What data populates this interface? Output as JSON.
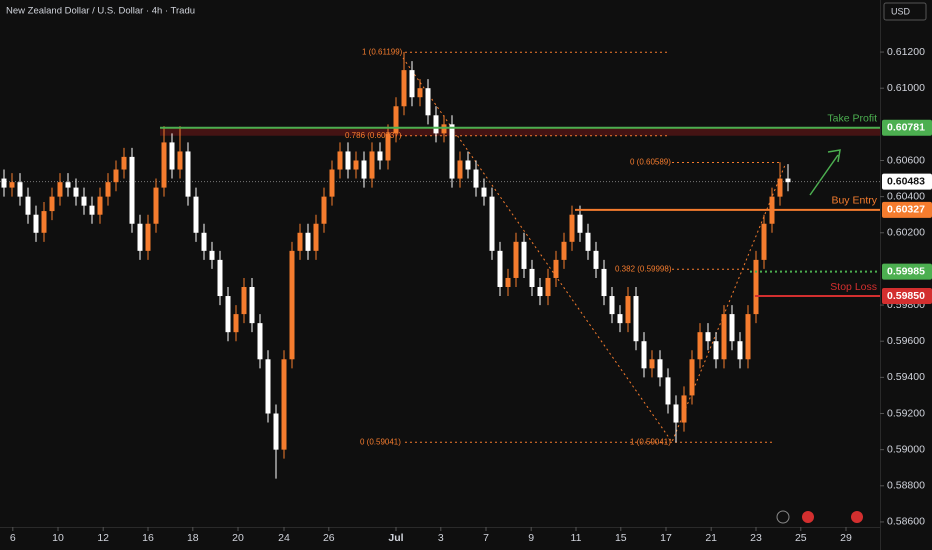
{
  "chart_data": {
    "type": "candlestick",
    "title": "New Zealand Dollar / U.S. Dollar · 4h · Tradu",
    "currency": "USD",
    "up_color": "#f57c2e",
    "down_color": "#ffffff",
    "open": [
      0.605,
      0.6045,
      0.6048,
      0.604,
      0.603,
      0.602,
      0.6032,
      0.604,
      0.6048,
      0.6045,
      0.604,
      0.6035,
      0.603,
      0.604,
      0.6048,
      0.6055,
      0.6062,
      0.6025,
      0.601,
      0.6025,
      0.6045,
      0.607,
      0.6055,
      0.6065,
      0.604,
      0.602,
      0.601,
      0.6005,
      0.5985,
      0.5965,
      0.5975,
      0.599,
      0.597,
      0.595,
      0.592,
      0.59,
      0.595,
      0.601,
      0.602,
      0.601,
      0.6025,
      0.604,
      0.6055,
      0.6065,
      0.6055,
      0.606,
      0.605,
      0.6065,
      0.606,
      0.6075,
      0.609,
      0.611,
      0.6095,
      0.61,
      0.6085,
      0.6075,
      0.608,
      0.605,
      0.606,
      0.6055,
      0.6045,
      0.604,
      0.601,
      0.599,
      0.5995,
      0.6015,
      0.6,
      0.599,
      0.5985,
      0.5995,
      0.6005,
      0.6015,
      0.603,
      0.602,
      0.601,
      0.6,
      0.5985,
      0.5975,
      0.597,
      0.5985,
      0.596,
      0.5945,
      0.595,
      0.594,
      0.5925,
      0.5915,
      0.593,
      0.595,
      0.5965,
      0.596,
      0.595,
      0.5975,
      0.596,
      0.595,
      0.5975,
      0.6005,
      0.6025,
      0.604,
      0.605
    ],
    "high": [
      0.6055,
      0.6053,
      0.6053,
      0.6045,
      0.6035,
      0.6037,
      0.6045,
      0.6053,
      0.6053,
      0.605,
      0.6045,
      0.604,
      0.6045,
      0.6053,
      0.606,
      0.6067,
      0.6067,
      0.603,
      0.603,
      0.605,
      0.6079,
      0.6075,
      0.6079,
      0.607,
      0.6045,
      0.6025,
      0.6015,
      0.601,
      0.599,
      0.598,
      0.5995,
      0.5995,
      0.5975,
      0.5955,
      0.5925,
      0.5955,
      0.6015,
      0.6025,
      0.6025,
      0.603,
      0.6045,
      0.606,
      0.607,
      0.607,
      0.6065,
      0.6065,
      0.607,
      0.607,
      0.608,
      0.6095,
      0.612,
      0.6115,
      0.6105,
      0.6105,
      0.609,
      0.6085,
      0.6085,
      0.6065,
      0.6065,
      0.606,
      0.605,
      0.6045,
      0.6015,
      0.6,
      0.602,
      0.602,
      0.6005,
      0.5995,
      0.6,
      0.601,
      0.602,
      0.6035,
      0.6035,
      0.6025,
      0.6015,
      0.6005,
      0.599,
      0.598,
      0.599,
      0.599,
      0.5965,
      0.5955,
      0.5955,
      0.5945,
      0.593,
      0.5935,
      0.5955,
      0.597,
      0.597,
      0.5965,
      0.598,
      0.598,
      0.5965,
      0.598,
      0.601,
      0.603,
      0.6045,
      0.6059,
      0.6058
    ],
    "low": [
      0.604,
      0.604,
      0.6035,
      0.6025,
      0.6015,
      0.6015,
      0.6027,
      0.6035,
      0.604,
      0.6035,
      0.603,
      0.6025,
      0.6025,
      0.6035,
      0.6043,
      0.605,
      0.602,
      0.6005,
      0.6005,
      0.602,
      0.604,
      0.605,
      0.605,
      0.6035,
      0.6015,
      0.6005,
      0.6,
      0.598,
      0.596,
      0.596,
      0.597,
      0.5965,
      0.5945,
      0.5915,
      0.5884,
      0.5895,
      0.5945,
      0.6005,
      0.6005,
      0.6005,
      0.602,
      0.6035,
      0.605,
      0.605,
      0.605,
      0.6045,
      0.6045,
      0.6055,
      0.6055,
      0.607,
      0.6085,
      0.609,
      0.609,
      0.608,
      0.607,
      0.607,
      0.6045,
      0.6045,
      0.605,
      0.604,
      0.6035,
      0.6005,
      0.5985,
      0.5985,
      0.599,
      0.5995,
      0.5985,
      0.598,
      0.598,
      0.599,
      0.6,
      0.601,
      0.6015,
      0.6005,
      0.5995,
      0.598,
      0.597,
      0.5965,
      0.5965,
      0.5955,
      0.594,
      0.594,
      0.5935,
      0.592,
      0.5904,
      0.591,
      0.5925,
      0.5945,
      0.5955,
      0.5945,
      0.5945,
      0.5955,
      0.5945,
      0.5945,
      0.597,
      0.6,
      0.602,
      0.6035,
      0.6043
    ],
    "close": [
      0.6045,
      0.6048,
      0.604,
      0.603,
      0.602,
      0.6032,
      0.604,
      0.6048,
      0.6045,
      0.604,
      0.6035,
      0.603,
      0.604,
      0.6048,
      0.6055,
      0.6062,
      0.6025,
      0.601,
      0.6025,
      0.6045,
      0.607,
      0.6055,
      0.6065,
      0.604,
      0.602,
      0.601,
      0.6005,
      0.5985,
      0.5965,
      0.5975,
      0.599,
      0.597,
      0.595,
      0.592,
      0.59,
      0.595,
      0.601,
      0.602,
      0.601,
      0.6025,
      0.604,
      0.6055,
      0.6065,
      0.6055,
      0.606,
      0.605,
      0.6065,
      0.606,
      0.6075,
      0.609,
      0.611,
      0.6095,
      0.61,
      0.6085,
      0.6075,
      0.608,
      0.605,
      0.606,
      0.6055,
      0.6045,
      0.604,
      0.601,
      0.599,
      0.5995,
      0.6015,
      0.6,
      0.599,
      0.5985,
      0.5995,
      0.6005,
      0.6015,
      0.603,
      0.602,
      0.601,
      0.6,
      0.5985,
      0.5975,
      0.597,
      0.5985,
      0.596,
      0.5945,
      0.595,
      0.594,
      0.5925,
      0.5915,
      0.593,
      0.595,
      0.5965,
      0.596,
      0.595,
      0.5975,
      0.596,
      0.595,
      0.5975,
      0.6005,
      0.6025,
      0.604,
      0.605,
      0.6048
    ],
    "xlim": [
      -0.5,
      109.5
    ],
    "xticks": [
      {
        "value": 1.1,
        "label": "6"
      },
      {
        "value": 6.75,
        "label": "10"
      },
      {
        "value": 12.4,
        "label": "12"
      },
      {
        "value": 18,
        "label": "16"
      },
      {
        "value": 23.6,
        "label": "18"
      },
      {
        "value": 29.25,
        "label": "20"
      },
      {
        "value": 35,
        "label": "24"
      },
      {
        "value": 40.6,
        "label": "26"
      },
      {
        "value": 49,
        "label": "Jul"
      },
      {
        "value": 54.6,
        "label": "3"
      },
      {
        "value": 60.25,
        "label": "7"
      },
      {
        "value": 65.9,
        "label": "9"
      },
      {
        "value": 71.5,
        "label": "11"
      },
      {
        "value": 77.1,
        "label": "15"
      },
      {
        "value": 82.75,
        "label": "17"
      },
      {
        "value": 88.4,
        "label": "21"
      },
      {
        "value": 94,
        "label": "23"
      },
      {
        "value": 99.6,
        "label": "25"
      },
      {
        "value": 105.25,
        "label": "29"
      }
    ],
    "ylim": [
      0.58572,
      0.61488
    ],
    "yticks": [
      {
        "value": 0.612,
        "label": "0.61200"
      },
      {
        "value": 0.61,
        "label": "0.61000"
      },
      {
        "value": 0.606,
        "label": "0.60600"
      },
      {
        "value": 0.604,
        "label": "0.60400"
      },
      {
        "value": 0.602,
        "label": "0.60200"
      },
      {
        "value": 0.598,
        "label": "0.59800"
      },
      {
        "value": 0.596,
        "label": "0.59600"
      },
      {
        "value": 0.594,
        "label": "0.59400"
      },
      {
        "value": 0.592,
        "label": "0.59200"
      },
      {
        "value": 0.59,
        "label": "0.59000"
      },
      {
        "value": 0.588,
        "label": "0.58800"
      },
      {
        "value": 0.586,
        "label": "0.58600"
      }
    ],
    "current_price": 0.60483,
    "levels": [
      {
        "name": "Take Profit",
        "value": 0.60781,
        "color": "#4caf50"
      },
      {
        "name": "Buy Entry",
        "value": 0.60327,
        "color": "#f57c2e"
      },
      {
        "value": 0.59985,
        "color": "#4caf50"
      },
      {
        "name": "Stop Loss",
        "value": 0.5985,
        "value_label": "0.59850",
        "color": "#d32f2f"
      }
    ],
    "fibs": [
      {
        "label": "1 (0.61199)",
        "value": 0.61199
      },
      {
        "label": "0.786 (0.60737)",
        "value": 0.60737
      },
      {
        "label": "0 (0.59041)",
        "value": 0.59041
      },
      {
        "label": "0 (0.60589)",
        "value": 0.60589
      },
      {
        "label": "0.382 (0.59998)",
        "value": 0.59998
      },
      {
        "label": "1 (0.59041)",
        "value": 0.59041
      }
    ]
  }
}
